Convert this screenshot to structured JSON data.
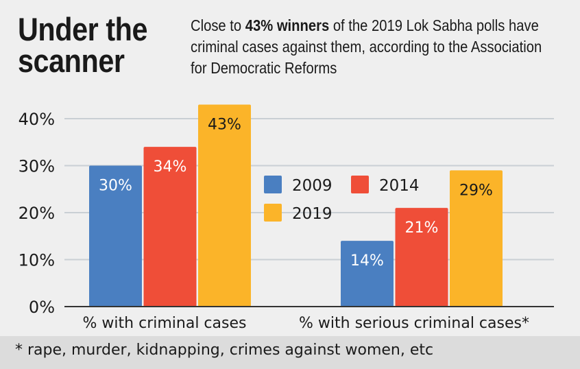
{
  "title": "Under the scanner",
  "subtitle": {
    "before": "Close to ",
    "bold": "43% winners",
    "after": " of the 2019 Lok Sabha polls have criminal cases against them, according to the Association for Democratic Reforms"
  },
  "footnote": "* rape, murder, kidnapping, crimes against women, etc",
  "chart_data": {
    "type": "bar",
    "categories": [
      "% with criminal cases",
      "% with serious criminal cases*"
    ],
    "series": [
      {
        "name": "2009",
        "values": [
          30,
          14
        ],
        "color": "#4a7fc1"
      },
      {
        "name": "2014",
        "values": [
          34,
          21
        ],
        "color": "#ef4e38"
      },
      {
        "name": "2019",
        "values": [
          43,
          29
        ],
        "color": "#fbb429"
      }
    ],
    "data_labels": [
      [
        "30%",
        "14%"
      ],
      [
        "34%",
        "21%"
      ],
      [
        "43%",
        "29%"
      ]
    ],
    "yticks": [
      "0%",
      "10%",
      "20%",
      "30%",
      "40%"
    ],
    "ylim": [
      0,
      43
    ],
    "grid": true,
    "legend_position": "center",
    "xlabel": "",
    "ylabel": ""
  }
}
